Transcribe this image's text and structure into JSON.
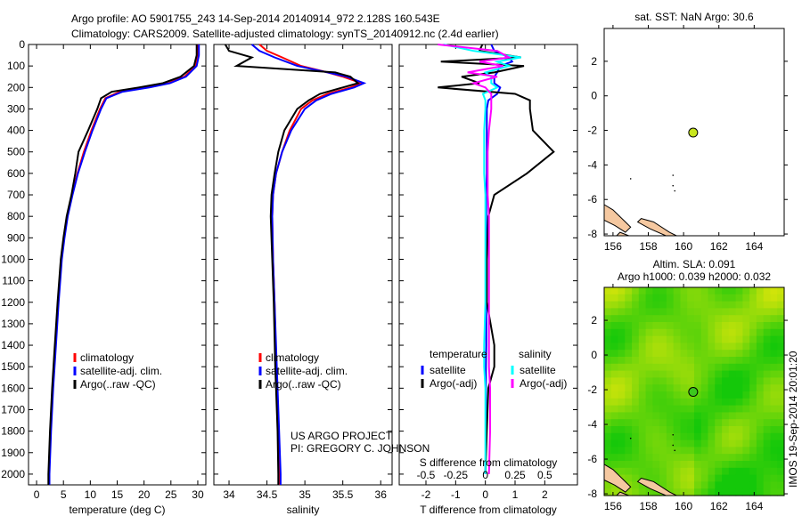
{
  "title_line1": "Argo profile: AO 5901755_243 14-Sep-2014 20140914_972 2.128S 160.543E",
  "title_line2": "Climatology: CARS2009. Satellite-adjusted climatology: synTS_20140912.nc (2.4d earlier)",
  "credit_line1": "US ARGO PROJECT",
  "credit_line2": "PI: GREGORY C. JOHNSON",
  "imos_stamp": "IMOS 19-Sep-2014 20:01:20",
  "colors": {
    "clim": "#ff0000",
    "sat": "#0000ff",
    "argo": "#000000",
    "sat_s": "#00ffff",
    "argo_s": "#ff00ff",
    "dot": "#c8e61e",
    "land": "#f5c8a0"
  },
  "chart_data": [
    {
      "type": "line",
      "id": "temp",
      "xlabel": "temperature (deg C)",
      "ylabel": "",
      "xlim": [
        -1.5,
        31.5
      ],
      "ylim": [
        2050,
        0
      ],
      "xticks": [
        0,
        5,
        10,
        15,
        20,
        25,
        30
      ],
      "yticks": [
        0,
        100,
        200,
        300,
        400,
        500,
        600,
        700,
        800,
        900,
        1000,
        1100,
        1200,
        1300,
        1400,
        1500,
        1600,
        1700,
        1800,
        1900,
        2000
      ],
      "depth": [
        0,
        50,
        100,
        150,
        180,
        200,
        220,
        250,
        300,
        400,
        500,
        600,
        700,
        800,
        900,
        1000,
        1200,
        1400,
        1600,
        1800,
        2000,
        2050
      ],
      "legend": [
        "climatology",
        "satellite-adj. clim.",
        "Argo(..raw -QC)"
      ],
      "series": [
        {
          "name": "climatology",
          "color": "clim",
          "values": [
            30,
            30,
            29.6,
            27.5,
            24.5,
            20.5,
            15.5,
            12.8,
            11.8,
            10.2,
            8.8,
            7.6,
            6.6,
            5.7,
            5.1,
            4.6,
            4.0,
            3.5,
            3.0,
            2.6,
            2.3,
            2.3
          ]
        },
        {
          "name": "satellite-adj. clim.",
          "color": "sat",
          "values": [
            30.2,
            30.2,
            29.8,
            27.8,
            24.8,
            21,
            16,
            13,
            12,
            10.4,
            9,
            7.7,
            6.7,
            5.8,
            5.2,
            4.7,
            4.1,
            3.6,
            3.1,
            2.7,
            2.4,
            2.4
          ]
        },
        {
          "name": "Argo(..raw -QC)",
          "color": "argo",
          "values": [
            29.8,
            29.8,
            29.3,
            26.8,
            23.5,
            19,
            14,
            12,
            11.3,
            9.6,
            7.8,
            7.2,
            6.5,
            5.6,
            5.0,
            4.5,
            3.9,
            3.4,
            2.9,
            2.5,
            2.2,
            2.2
          ]
        }
      ]
    },
    {
      "type": "line",
      "id": "sal",
      "xlabel": "salinity",
      "ylabel": "",
      "xlim": [
        33.8,
        36.15
      ],
      "ylim": [
        2050,
        0
      ],
      "xticks": [
        34,
        34.5,
        35,
        35.5,
        36
      ],
      "depth": [
        0,
        30,
        60,
        100,
        130,
        150,
        180,
        200,
        230,
        260,
        300,
        400,
        500,
        600,
        700,
        800,
        1000,
        1200,
        1500,
        1800,
        2000,
        2050
      ],
      "legend": [
        "climatology",
        "satellite-adj. clim.",
        "Argo(..raw -QC)"
      ],
      "series": [
        {
          "name": "climatology",
          "color": "clim",
          "values": [
            34.4,
            34.5,
            34.7,
            34.95,
            35.3,
            35.5,
            35.75,
            35.6,
            35.3,
            35.1,
            34.95,
            34.8,
            34.7,
            34.62,
            34.58,
            34.57,
            34.58,
            34.6,
            34.62,
            34.65,
            34.66,
            34.66
          ]
        },
        {
          "name": "satellite-adj. clim.",
          "color": "sat",
          "values": [
            34.3,
            34.4,
            34.6,
            34.9,
            35.3,
            35.55,
            35.78,
            35.65,
            35.35,
            35.15,
            35.0,
            34.82,
            34.7,
            34.62,
            34.58,
            34.57,
            34.58,
            34.6,
            34.63,
            34.66,
            34.68,
            34.68
          ]
        },
        {
          "name": "Argo(..raw -QC)",
          "color": "argo",
          "values": [
            33.95,
            34.0,
            34.3,
            34.1,
            35.4,
            35.6,
            35.7,
            35.5,
            35.2,
            35.05,
            34.9,
            34.73,
            34.65,
            34.6,
            34.56,
            34.55,
            34.57,
            34.59,
            34.61,
            34.64,
            34.65,
            34.65
          ]
        }
      ]
    },
    {
      "type": "line",
      "id": "diff",
      "xlabel": "T difference from climatology",
      "xlabel_top": "S difference from climatology",
      "xlim": [
        -2.9,
        3.1
      ],
      "ylim": [
        2050,
        0
      ],
      "xticks": [
        -2,
        -1,
        0,
        1,
        2
      ],
      "s_ticks": [
        -0.5,
        -0.25,
        0,
        0.25,
        0.5
      ],
      "s_scale": 0.25,
      "depth": [
        0,
        30,
        60,
        80,
        100,
        130,
        150,
        180,
        200,
        230,
        260,
        300,
        400,
        500,
        600,
        700,
        800,
        1000,
        1200,
        1400,
        1500,
        1600,
        1800,
        2000
      ],
      "legend_t_title": "temperature",
      "legend_s_title": "salinity",
      "legend": [
        "satellite",
        "Argo(-adj)",
        "satellite",
        "Argo(-adj)"
      ],
      "series": [
        {
          "name": "T satellite",
          "color": "sat",
          "kind": "T",
          "values": [
            0.2,
            0.3,
            0.8,
            0.9,
            0.5,
            0.4,
            0.3,
            0.3,
            0.5,
            0.4,
            0.1,
            0.05,
            0.05,
            0.05,
            0.05,
            0.03,
            0.03,
            0.03,
            0.03,
            0.03,
            0.02,
            0.02,
            0.02,
            0.0
          ]
        },
        {
          "name": "T Argo(-adj)",
          "color": "argo",
          "kind": "T",
          "values": [
            -0.1,
            -0.2,
            1.2,
            -1.5,
            1.3,
            0.3,
            -0.8,
            -0.2,
            -1.6,
            1.0,
            1.5,
            1.5,
            1.6,
            2.3,
            1.4,
            0.3,
            0.1,
            0.05,
            0.05,
            0.3,
            0.3,
            0.1,
            0.05,
            0.0
          ]
        },
        {
          "name": "S satellite",
          "color": "sat_s",
          "kind": "S",
          "values": [
            -0.35,
            -0.1,
            0.3,
            0.1,
            0.2,
            0.0,
            0.05,
            0.05,
            0.1,
            -0.02,
            0.0,
            0.0,
            -0.01,
            -0.01,
            -0.01,
            0.0,
            0.0,
            0.0,
            0.0,
            -0.01,
            -0.01,
            0.0,
            0.0,
            0.0
          ]
        },
        {
          "name": "S Argo(-adj)",
          "color": "argo_s",
          "kind": "S",
          "values": [
            -0.4,
            0.1,
            0.2,
            -0.05,
            0.15,
            -0.15,
            0.1,
            -0.1,
            0.0,
            0.05,
            0.05,
            0.05,
            0.03,
            0.02,
            0.02,
            0.02,
            0.03,
            0.03,
            0.03,
            0.03,
            0.03,
            0.04,
            0.04,
            0.03
          ]
        }
      ]
    },
    {
      "type": "map",
      "id": "sst",
      "title": "sat. SST: NaN Argo: 30.6",
      "xlim": [
        155.5,
        165.7
      ],
      "ylim": [
        -8.1,
        3.9
      ],
      "xticks": [
        156,
        158,
        160,
        162,
        164
      ],
      "yticks": [
        -8,
        -6,
        -4,
        -2,
        0,
        2
      ],
      "float_position": [
        160.543,
        -2.128
      ]
    },
    {
      "type": "heatmap",
      "id": "sla",
      "title_line1": "Altim. SLA: 0.091",
      "title_line2": "Argo h1000: 0.039 h2000: 0.032",
      "xlim": [
        155.5,
        165.7
      ],
      "ylim": [
        -8.1,
        3.9
      ],
      "xticks": [
        156,
        158,
        160,
        162,
        164
      ],
      "yticks": [
        -8,
        -6,
        -4,
        -2,
        0,
        2
      ],
      "float_position": [
        160.543,
        -2.128
      ]
    }
  ]
}
